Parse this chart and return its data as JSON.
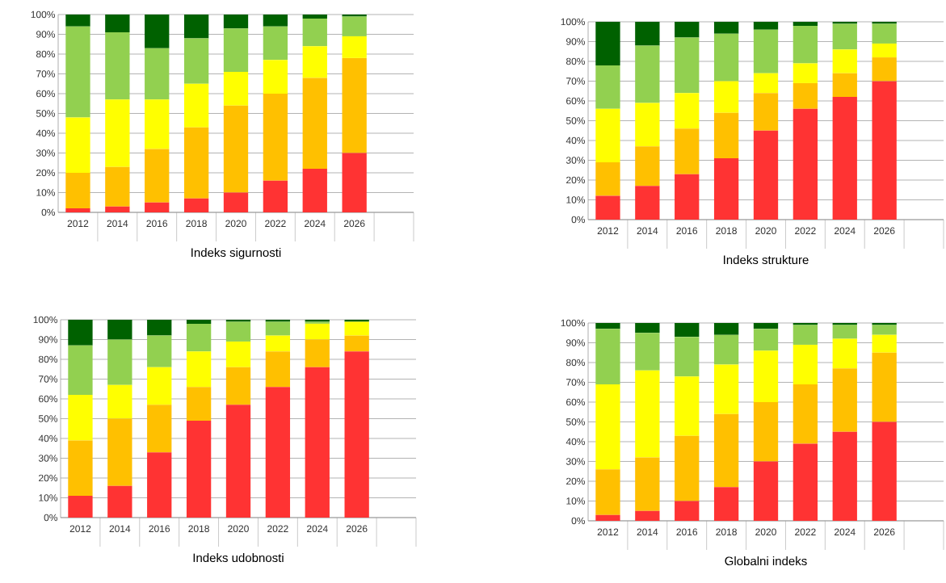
{
  "chart_data": [
    {
      "type": "bar",
      "stacked": true,
      "title": "Indeks sigurnosti",
      "categories": [
        "2012",
        "2014",
        "2016",
        "2018",
        "2020",
        "2022",
        "2024",
        "2026"
      ],
      "ylim": [
        0,
        100
      ],
      "yticks": [
        {
          "value": 0,
          "label": "0%"
        },
        {
          "value": 10,
          "label": "10%"
        },
        {
          "value": 20,
          "label": "20%"
        },
        {
          "value": 30,
          "label": "30%"
        },
        {
          "value": 40,
          "label": "40%"
        },
        {
          "value": 50,
          "label": "50%"
        },
        {
          "value": 60,
          "label": "60%"
        },
        {
          "value": 70,
          "label": "70%"
        },
        {
          "value": 80,
          "label": "80%"
        },
        {
          "value": 90,
          "label": "90%"
        },
        {
          "value": 100,
          "label": "100%"
        }
      ],
      "grid": "y",
      "series": [
        {
          "color": "#ff3333",
          "values": [
            2,
            3,
            5,
            7,
            10,
            16,
            22,
            30
          ]
        },
        {
          "color": "#ffc000",
          "values": [
            18,
            20,
            27,
            36,
            44,
            44,
            46,
            48
          ]
        },
        {
          "color": "#ffff00",
          "values": [
            28,
            34,
            25,
            22,
            17,
            17,
            16,
            11
          ]
        },
        {
          "color": "#92d050",
          "values": [
            46,
            34,
            26,
            23,
            22,
            17,
            14,
            10
          ]
        },
        {
          "color": "#006100",
          "values": [
            6,
            9,
            17,
            12,
            7,
            6,
            2,
            1
          ]
        }
      ]
    },
    {
      "type": "bar",
      "stacked": true,
      "title": "Indeks strukture",
      "categories": [
        "2012",
        "2014",
        "2016",
        "2018",
        "2020",
        "2022",
        "2024",
        "2026"
      ],
      "ylim": [
        0,
        100
      ],
      "yticks": [
        {
          "value": 0,
          "label": "0%"
        },
        {
          "value": 10,
          "label": "10%"
        },
        {
          "value": 20,
          "label": "20%"
        },
        {
          "value": 30,
          "label": "30%"
        },
        {
          "value": 40,
          "label": "40%"
        },
        {
          "value": 50,
          "label": "50%"
        },
        {
          "value": 60,
          "label": "60%"
        },
        {
          "value": 70,
          "label": "70%"
        },
        {
          "value": 80,
          "label": "80%"
        },
        {
          "value": 90,
          "label": "90%"
        },
        {
          "value": 100,
          "label": "100%"
        }
      ],
      "grid": "y",
      "series": [
        {
          "color": "#ff3333",
          "values": [
            12,
            17,
            23,
            31,
            45,
            56,
            62,
            70
          ]
        },
        {
          "color": "#ffc000",
          "values": [
            17,
            20,
            23,
            23,
            19,
            13,
            12,
            12
          ]
        },
        {
          "color": "#ffff00",
          "values": [
            27,
            22,
            18,
            16,
            10,
            10,
            12,
            7
          ]
        },
        {
          "color": "#92d050",
          "values": [
            22,
            29,
            28,
            24,
            22,
            19,
            13,
            10
          ]
        },
        {
          "color": "#006100",
          "values": [
            22,
            12,
            8,
            6,
            4,
            2,
            1,
            1
          ]
        }
      ]
    },
    {
      "type": "bar",
      "stacked": true,
      "title": "Indeks udobnosti",
      "categories": [
        "2012",
        "2014",
        "2016",
        "2018",
        "2020",
        "2022",
        "2024",
        "2026"
      ],
      "ylim": [
        0,
        100
      ],
      "yticks": [
        {
          "value": 0,
          "label": "0%"
        },
        {
          "value": 10,
          "label": "10%"
        },
        {
          "value": 20,
          "label": "20%"
        },
        {
          "value": 30,
          "label": "30%"
        },
        {
          "value": 40,
          "label": "40%"
        },
        {
          "value": 50,
          "label": "50%"
        },
        {
          "value": 60,
          "label": "60%"
        },
        {
          "value": 70,
          "label": "70%"
        },
        {
          "value": 80,
          "label": "80%"
        },
        {
          "value": 90,
          "label": "90%"
        },
        {
          "value": 100,
          "label": "100%"
        }
      ],
      "grid": "y",
      "series": [
        {
          "color": "#ff3333",
          "values": [
            11,
            16,
            33,
            49,
            57,
            66,
            76,
            84
          ]
        },
        {
          "color": "#ffc000",
          "values": [
            28,
            34,
            24,
            17,
            19,
            18,
            14,
            8
          ]
        },
        {
          "color": "#ffff00",
          "values": [
            23,
            17,
            19,
            18,
            13,
            8,
            8,
            7
          ]
        },
        {
          "color": "#92d050",
          "values": [
            25,
            23,
            16,
            14,
            10,
            7,
            1,
            0
          ]
        },
        {
          "color": "#006100",
          "values": [
            13,
            10,
            8,
            2,
            1,
            1,
            1,
            1
          ]
        }
      ]
    },
    {
      "type": "bar",
      "stacked": true,
      "title": "Globalni indeks",
      "categories": [
        "2012",
        "2014",
        "2016",
        "2018",
        "2020",
        "2022",
        "2024",
        "2026"
      ],
      "ylim": [
        0,
        100
      ],
      "yticks": [
        {
          "value": 0,
          "label": "0%"
        },
        {
          "value": 10,
          "label": "10%"
        },
        {
          "value": 20,
          "label": "20%"
        },
        {
          "value": 30,
          "label": "30%"
        },
        {
          "value": 40,
          "label": "40%"
        },
        {
          "value": 50,
          "label": "50%"
        },
        {
          "value": 60,
          "label": "60%"
        },
        {
          "value": 70,
          "label": "70%"
        },
        {
          "value": 80,
          "label": "80%"
        },
        {
          "value": 90,
          "label": "90%"
        },
        {
          "value": 100,
          "label": "100%"
        }
      ],
      "grid": "y",
      "series": [
        {
          "color": "#ff3333",
          "values": [
            3,
            5,
            10,
            17,
            30,
            39,
            45,
            50
          ]
        },
        {
          "color": "#ffc000",
          "values": [
            23,
            27,
            33,
            37,
            30,
            30,
            32,
            35
          ]
        },
        {
          "color": "#ffff00",
          "values": [
            43,
            44,
            30,
            25,
            26,
            20,
            15,
            9
          ]
        },
        {
          "color": "#92d050",
          "values": [
            28,
            19,
            20,
            15,
            11,
            10,
            7,
            5
          ]
        },
        {
          "color": "#006100",
          "values": [
            3,
            5,
            7,
            6,
            3,
            1,
            1,
            1
          ]
        }
      ]
    }
  ]
}
